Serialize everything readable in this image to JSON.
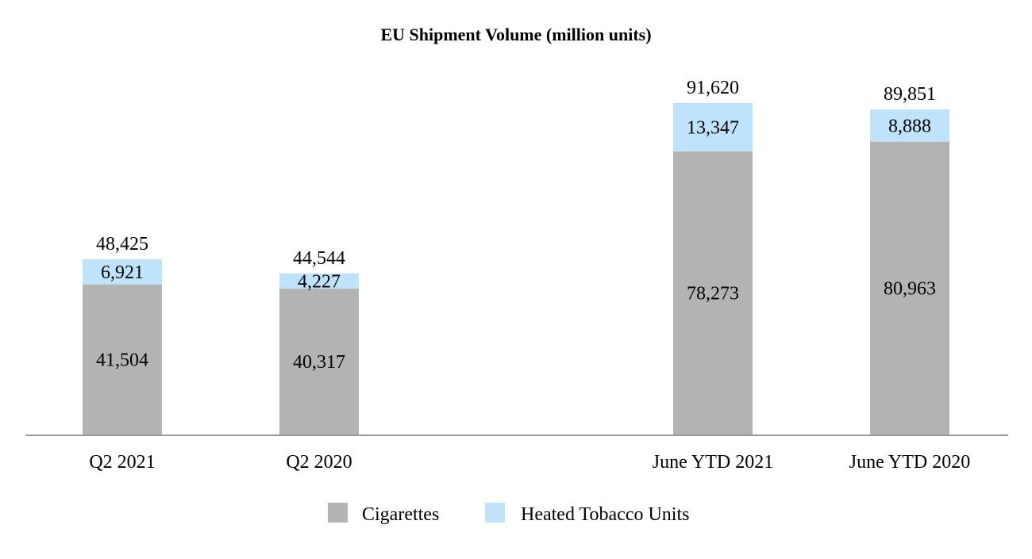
{
  "chart_data": {
    "type": "bar",
    "stacked": true,
    "title": "EU Shipment Volume (million units)",
    "xlabel": "",
    "ylabel": "",
    "ylim": [
      0,
      100000
    ],
    "grid": false,
    "legend_position": "bottom-center",
    "categories": [
      "Q2 2021",
      "Q2 2020",
      "June YTD 2021",
      "June YTD 2020"
    ],
    "series": [
      {
        "name": "Cigarettes",
        "color": "#b3b3b3",
        "values": [
          41504,
          40317,
          78273,
          80963
        ],
        "labels": [
          "41,504",
          "40,317",
          "78,273",
          "80,963"
        ]
      },
      {
        "name": "Heated Tobacco Units",
        "color": "#bfe3fa",
        "values": [
          6921,
          4227,
          13347,
          8888
        ],
        "labels": [
          "6,921",
          "4,227",
          "13,347",
          "8,888"
        ]
      }
    ],
    "totals": [
      48425,
      44544,
      91620,
      89851
    ],
    "total_labels": [
      "48,425",
      "44,544",
      "91,620",
      "89,851"
    ]
  }
}
